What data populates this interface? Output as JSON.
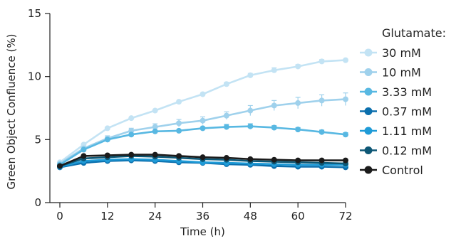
{
  "chart_data": {
    "type": "line",
    "xlabel": "Time (h)",
    "ylabel": "Green Object Confluence (%)",
    "xlim": [
      0,
      72
    ],
    "ylim": [
      0,
      15
    ],
    "xticks": [
      "0",
      "12",
      "24",
      "36",
      "48",
      "60",
      "72"
    ],
    "yticks": [
      "0",
      "5",
      "10",
      "15"
    ],
    "grid": false,
    "legend_position": "right",
    "legend_title": "Glutamate:",
    "x": [
      0,
      6,
      12,
      18,
      24,
      30,
      36,
      42,
      48,
      54,
      60,
      66,
      72
    ],
    "series": [
      {
        "name": "30 mM",
        "color": "#c3e3f4",
        "values": [
          3.2,
          4.6,
          5.9,
          6.7,
          7.3,
          8.0,
          8.6,
          9.4,
          10.1,
          10.5,
          10.8,
          11.2,
          11.3
        ],
        "error": [
          0.1,
          0.1,
          0.1,
          0.1,
          0.1,
          0.1,
          0.1,
          0.15,
          0.15,
          0.2,
          0.15,
          0.15,
          0.1
        ]
      },
      {
        "name": "10 mM",
        "color": "#9fd1ec",
        "values": [
          3.1,
          4.3,
          5.1,
          5.7,
          6.0,
          6.3,
          6.5,
          6.9,
          7.3,
          7.7,
          7.9,
          8.1,
          8.2
        ],
        "error": [
          0.1,
          0.1,
          0.2,
          0.2,
          0.25,
          0.3,
          0.3,
          0.3,
          0.4,
          0.4,
          0.45,
          0.45,
          0.5
        ]
      },
      {
        "name": "3.33 mM",
        "color": "#58b8e2",
        "values": [
          3.0,
          4.2,
          5.0,
          5.4,
          5.65,
          5.7,
          5.9,
          6.0,
          6.05,
          5.95,
          5.8,
          5.6,
          5.4
        ],
        "error": [
          0.1,
          0.1,
          0.1,
          0.1,
          0.1,
          0.1,
          0.1,
          0.2,
          0.2,
          0.15,
          0.15,
          0.15,
          0.15
        ]
      },
      {
        "name": "0.37 mM",
        "color": "#0b6fad",
        "values": [
          2.8,
          3.15,
          3.3,
          3.35,
          3.3,
          3.2,
          3.15,
          3.05,
          3.0,
          2.9,
          2.85,
          2.85,
          2.8
        ],
        "error": [
          0.05,
          0.05,
          0.05,
          0.05,
          0.05,
          0.05,
          0.05,
          0.05,
          0.05,
          0.05,
          0.05,
          0.05,
          0.05
        ]
      },
      {
        "name": "1.11 mM",
        "color": "#1f9bd7",
        "values": [
          2.85,
          3.3,
          3.4,
          3.45,
          3.4,
          3.3,
          3.2,
          3.15,
          3.1,
          3.05,
          3.0,
          3.0,
          3.0
        ],
        "error": [
          0.05,
          0.05,
          0.05,
          0.05,
          0.05,
          0.05,
          0.05,
          0.05,
          0.05,
          0.05,
          0.05,
          0.05,
          0.05
        ]
      },
      {
        "name": "0.12 mM",
        "color": "#0d5775",
        "values": [
          2.9,
          3.5,
          3.6,
          3.7,
          3.65,
          3.55,
          3.45,
          3.4,
          3.3,
          3.25,
          3.2,
          3.15,
          3.1
        ],
        "error": [
          0.05,
          0.05,
          0.05,
          0.05,
          0.05,
          0.05,
          0.05,
          0.05,
          0.05,
          0.05,
          0.05,
          0.05,
          0.05
        ]
      },
      {
        "name": "Control",
        "color": "#1b1b1b",
        "values": [
          2.9,
          3.7,
          3.75,
          3.8,
          3.8,
          3.7,
          3.6,
          3.55,
          3.45,
          3.4,
          3.35,
          3.35,
          3.35
        ],
        "error": [
          0.05,
          0.05,
          0.05,
          0.05,
          0.05,
          0.05,
          0.05,
          0.05,
          0.05,
          0.05,
          0.05,
          0.05,
          0.05
        ]
      }
    ]
  }
}
